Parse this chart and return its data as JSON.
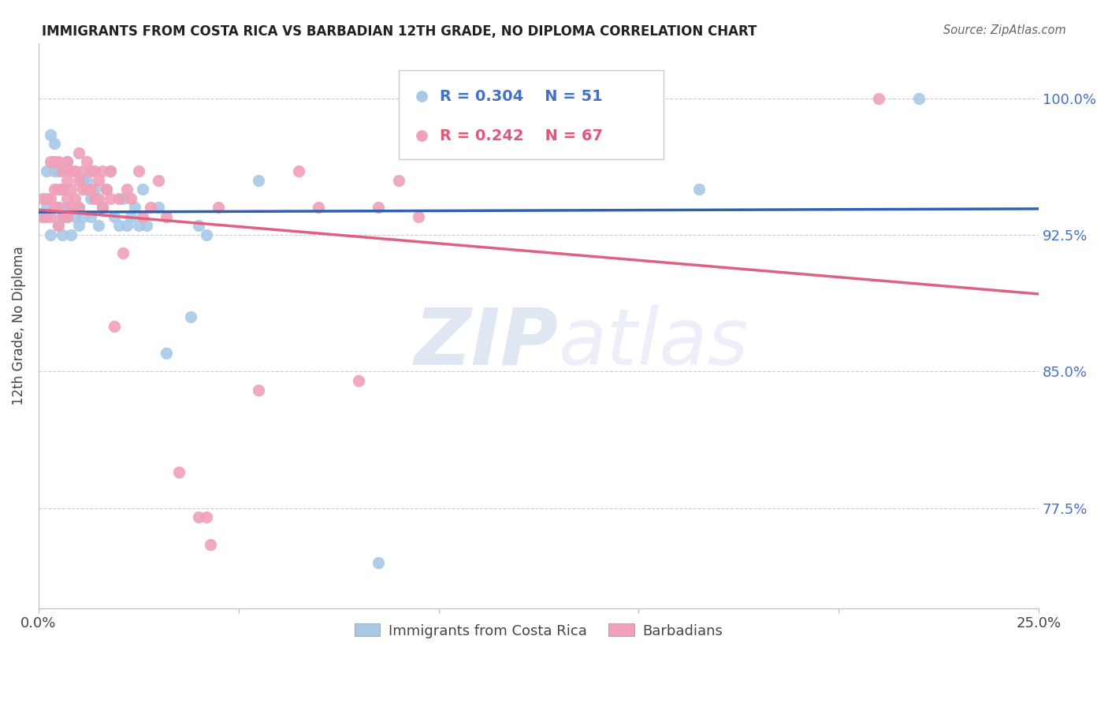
{
  "title": "IMMIGRANTS FROM COSTA RICA VS BARBADIAN 12TH GRADE, NO DIPLOMA CORRELATION CHART",
  "source": "Source: ZipAtlas.com",
  "ylabel": "12th Grade, No Diploma",
  "ylabel_ticks": [
    "100.0%",
    "92.5%",
    "85.0%",
    "77.5%"
  ],
  "ylabel_values": [
    1.0,
    0.925,
    0.85,
    0.775
  ],
  "xmin": 0.0,
  "xmax": 0.25,
  "ymin": 0.72,
  "ymax": 1.03,
  "legend1_r": "0.304",
  "legend1_n": "51",
  "legend2_r": "0.242",
  "legend2_n": "67",
  "color_blue": "#a8c8e8",
  "color_pink": "#f0a0b8",
  "color_blue_line": "#3060b0",
  "color_pink_line": "#e06080",
  "watermark_zip": "ZIP",
  "watermark_atlas": "atlas",
  "blue_points_x": [
    0.001,
    0.002,
    0.002,
    0.003,
    0.003,
    0.004,
    0.004,
    0.005,
    0.005,
    0.005,
    0.006,
    0.006,
    0.006,
    0.007,
    0.007,
    0.007,
    0.008,
    0.008,
    0.009,
    0.009,
    0.01,
    0.01,
    0.011,
    0.011,
    0.012,
    0.013,
    0.013,
    0.014,
    0.015,
    0.016,
    0.017,
    0.018,
    0.019,
    0.02,
    0.021,
    0.022,
    0.023,
    0.024,
    0.025,
    0.026,
    0.027,
    0.03,
    0.032,
    0.038,
    0.04,
    0.042,
    0.055,
    0.085,
    0.13,
    0.165,
    0.22
  ],
  "blue_points_y": [
    0.935,
    0.94,
    0.96,
    0.925,
    0.98,
    0.96,
    0.975,
    0.94,
    0.93,
    0.96,
    0.935,
    0.95,
    0.925,
    0.94,
    0.935,
    0.965,
    0.94,
    0.925,
    0.935,
    0.96,
    0.94,
    0.93,
    0.955,
    0.935,
    0.955,
    0.945,
    0.935,
    0.95,
    0.93,
    0.94,
    0.95,
    0.96,
    0.935,
    0.93,
    0.945,
    0.93,
    0.935,
    0.94,
    0.93,
    0.95,
    0.93,
    0.94,
    0.86,
    0.88,
    0.93,
    0.925,
    0.955,
    0.745,
    0.97,
    0.95,
    1.0
  ],
  "pink_points_x": [
    0.001,
    0.001,
    0.002,
    0.002,
    0.003,
    0.003,
    0.003,
    0.004,
    0.004,
    0.004,
    0.005,
    0.005,
    0.005,
    0.005,
    0.006,
    0.006,
    0.006,
    0.007,
    0.007,
    0.007,
    0.007,
    0.008,
    0.008,
    0.008,
    0.009,
    0.009,
    0.01,
    0.01,
    0.01,
    0.011,
    0.011,
    0.012,
    0.012,
    0.013,
    0.013,
    0.014,
    0.014,
    0.015,
    0.015,
    0.016,
    0.016,
    0.017,
    0.018,
    0.018,
    0.019,
    0.02,
    0.021,
    0.022,
    0.023,
    0.025,
    0.026,
    0.028,
    0.03,
    0.032,
    0.035,
    0.04,
    0.042,
    0.043,
    0.045,
    0.055,
    0.065,
    0.07,
    0.08,
    0.085,
    0.09,
    0.095,
    0.21
  ],
  "pink_points_y": [
    0.935,
    0.945,
    0.935,
    0.945,
    0.965,
    0.945,
    0.935,
    0.965,
    0.95,
    0.94,
    0.965,
    0.95,
    0.94,
    0.93,
    0.96,
    0.95,
    0.935,
    0.965,
    0.955,
    0.945,
    0.935,
    0.96,
    0.95,
    0.94,
    0.96,
    0.945,
    0.97,
    0.955,
    0.94,
    0.96,
    0.95,
    0.965,
    0.95,
    0.96,
    0.95,
    0.96,
    0.945,
    0.955,
    0.945,
    0.96,
    0.94,
    0.95,
    0.96,
    0.945,
    0.875,
    0.945,
    0.915,
    0.95,
    0.945,
    0.96,
    0.935,
    0.94,
    0.955,
    0.935,
    0.795,
    0.77,
    0.77,
    0.755,
    0.94,
    0.84,
    0.96,
    0.94,
    0.845,
    0.94,
    0.955,
    0.935,
    1.0
  ]
}
